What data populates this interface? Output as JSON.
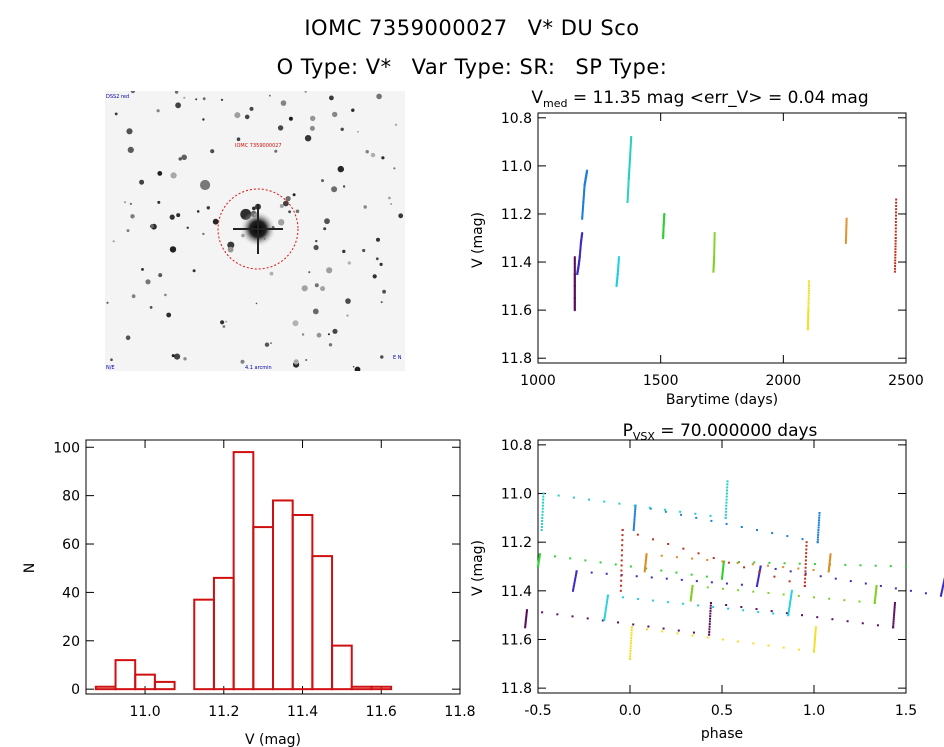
{
  "header": {
    "id": "IOMC 7359000027",
    "name": "V* DU Sco",
    "otype": "O Type: V*",
    "vartype": "Var Type: SR:",
    "sptype": "SP Type:"
  },
  "stamp": {
    "labels": {
      "top_left": "DSS2 red",
      "center_red": "IOMC 7359000027",
      "bottom_left": "N/E",
      "bottom_center": "4.1 arcmin",
      "bottom_right": "E N"
    }
  },
  "chart_data": [
    {
      "type": "scatter",
      "title_text": "V",
      "title_sub": "med",
      "title_rest": " = 11.35 mag <err_V> = 0.04 mag",
      "xlabel": "Barytime (days)",
      "ylabel": "V (mag)",
      "xlim": [
        1000,
        2500
      ],
      "ylim": [
        11.82,
        10.78
      ],
      "xticks": [
        1000,
        1500,
        2000,
        2500
      ],
      "yticks": [
        10.8,
        11.0,
        11.2,
        11.4,
        11.6,
        11.8
      ],
      "series": [
        {
          "name": "s1",
          "color": "#5a0f5a",
          "x": [
            1150,
            1150,
            1150,
            1150,
            1150
          ],
          "y": [
            11.6,
            11.55,
            11.5,
            11.45,
            11.38
          ]
        },
        {
          "name": "s2",
          "color": "#3f2bc8",
          "x": [
            1160,
            1165,
            1170,
            1175,
            1180
          ],
          "y": [
            11.45,
            11.42,
            11.38,
            11.32,
            11.28
          ]
        },
        {
          "name": "s3",
          "color": "#1e7fd4",
          "x": [
            1180,
            1185,
            1190,
            1195,
            1200
          ],
          "y": [
            11.22,
            11.15,
            11.08,
            11.05,
            11.02
          ]
        },
        {
          "name": "s4",
          "color": "#20d0e0",
          "x": [
            1320,
            1325,
            1330
          ],
          "y": [
            11.5,
            11.45,
            11.38
          ]
        },
        {
          "name": "s5",
          "color": "#20d0c0",
          "x": [
            1365,
            1370,
            1375,
            1380
          ],
          "y": [
            11.15,
            11.05,
            10.97,
            10.88
          ]
        },
        {
          "name": "s6",
          "color": "#30d030",
          "x": [
            1510,
            1512,
            1515
          ],
          "y": [
            11.3,
            11.25,
            11.2
          ]
        },
        {
          "name": "s7",
          "color": "#80d020",
          "x": [
            1715,
            1718,
            1720
          ],
          "y": [
            11.44,
            11.38,
            11.28
          ]
        },
        {
          "name": "s8",
          "color": "#f0e020",
          "x": [
            2100,
            2102,
            2105
          ],
          "y": [
            11.68,
            11.6,
            11.48
          ]
        },
        {
          "name": "s9",
          "color": "#e08a20",
          "x": [
            2255,
            2258
          ],
          "y": [
            11.32,
            11.22
          ]
        },
        {
          "name": "s10",
          "color": "#c0301a",
          "x": [
            2455,
            2458,
            2460
          ],
          "y": [
            11.44,
            11.3,
            11.14
          ]
        }
      ]
    },
    {
      "type": "bar",
      "title": "",
      "xlabel": "V (mag)",
      "ylabel": "N",
      "xlim": [
        10.85,
        11.8
      ],
      "ylim": [
        -2,
        103
      ],
      "xticks": [
        11.0,
        11.2,
        11.4,
        11.6,
        11.8
      ],
      "yticks": [
        0,
        20,
        40,
        60,
        80,
        100
      ],
      "bin_width": 0.05,
      "bin_centers": [
        10.9,
        10.95,
        11.0,
        11.05,
        11.1,
        11.15,
        11.2,
        11.25,
        11.3,
        11.35,
        11.4,
        11.45,
        11.5,
        11.55,
        11.6,
        11.65,
        11.7
      ],
      "values": [
        1,
        12,
        6,
        3,
        0,
        37,
        46,
        98,
        67,
        78,
        72,
        55,
        18,
        1,
        1,
        0,
        0
      ],
      "color": "#d01010"
    },
    {
      "type": "scatter",
      "title_text": "P",
      "title_sub": "VSX",
      "title_rest": " = 70.000000 days",
      "xlabel": "phase",
      "ylabel": "V (mag)",
      "xlim": [
        -0.5,
        1.5
      ],
      "ylim": [
        11.82,
        10.78
      ],
      "xticks": [
        -0.5,
        0.0,
        0.5,
        1.0,
        1.5
      ],
      "yticks": [
        10.8,
        11.0,
        11.2,
        11.4,
        11.6,
        11.8
      ],
      "series": [
        {
          "name": "p1",
          "color": "#5a0f5a",
          "x": [
            -0.57,
            -0.56,
            0.43,
            0.44,
            1.43,
            1.44
          ],
          "y": [
            11.55,
            11.48,
            11.58,
            11.45,
            11.55,
            11.45
          ]
        },
        {
          "name": "p2",
          "color": "#3f2bc8",
          "x": [
            -0.31,
            -0.29,
            0.69,
            0.71,
            1.69,
            1.71
          ],
          "y": [
            11.4,
            11.32,
            11.38,
            11.3,
            11.42,
            11.35
          ]
        },
        {
          "name": "p3",
          "color": "#1e7fd4",
          "x": [
            0.02,
            0.03,
            1.02,
            1.03
          ],
          "y": [
            11.15,
            11.05,
            11.2,
            11.08
          ]
        },
        {
          "name": "p4",
          "color": "#20d0e0",
          "x": [
            -0.14,
            -0.12,
            0.86,
            0.88
          ],
          "y": [
            11.52,
            11.42,
            11.5,
            11.4
          ]
        },
        {
          "name": "p5",
          "color": "#20d0c0",
          "x": [
            -0.48,
            -0.47,
            0.52,
            0.53
          ],
          "y": [
            11.15,
            11.0,
            11.1,
            10.95
          ]
        },
        {
          "name": "p6",
          "color": "#30d030",
          "x": [
            -0.5,
            -0.49,
            0.5,
            0.51,
            1.5
          ],
          "y": [
            11.3,
            11.25,
            11.35,
            11.28,
            11.3
          ]
        },
        {
          "name": "p7",
          "color": "#80d020",
          "x": [
            0.33,
            0.34,
            1.33,
            1.34
          ],
          "y": [
            11.44,
            11.38,
            11.45,
            11.38
          ]
        },
        {
          "name": "p8",
          "color": "#f0e020",
          "x": [
            0.0,
            0.01,
            1.0,
            1.01
          ],
          "y": [
            11.68,
            11.55,
            11.65,
            11.55
          ]
        },
        {
          "name": "p9",
          "color": "#e08a20",
          "x": [
            0.08,
            0.09,
            1.08,
            1.09
          ],
          "y": [
            11.32,
            11.25,
            11.32,
            11.25
          ]
        },
        {
          "name": "p10",
          "color": "#c0301a",
          "x": [
            -0.05,
            -0.04,
            0.95,
            0.96
          ],
          "y": [
            11.4,
            11.15,
            11.38,
            11.2
          ]
        }
      ]
    }
  ]
}
